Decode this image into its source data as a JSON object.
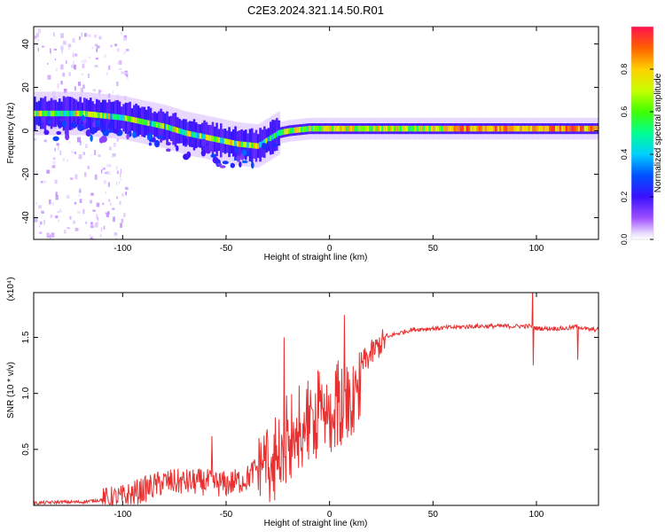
{
  "title": "C2E3.2024.321.14.50.R01",
  "chart_data": [
    {
      "type": "heatmap",
      "xlabel": "Height of straight line (km)",
      "ylabel": "Frequency (Hz)",
      "xlim": [
        -143,
        130
      ],
      "ylim": [
        -50,
        48
      ],
      "xticks": [
        -100,
        -50,
        0,
        50,
        100
      ],
      "yticks": [
        -40,
        -20,
        0,
        20,
        40
      ],
      "ridge": {
        "x": [
          -140,
          -130,
          -120,
          -110,
          -100,
          -90,
          -80,
          -70,
          -60,
          -50,
          -45,
          -40,
          -35,
          -30,
          -25,
          -20,
          -10,
          0,
          10,
          20,
          40,
          60,
          80,
          100,
          120,
          130
        ],
        "freq": [
          8,
          8,
          8,
          7,
          6,
          4,
          2,
          -1,
          -3,
          -5,
          -6,
          -6.5,
          -7,
          -4,
          -1,
          0,
          1,
          1,
          1,
          1,
          1,
          1,
          1,
          1,
          1,
          1
        ]
      },
      "colorbar": {
        "label": "Normalized spectral amplitude",
        "ticks": [
          "0.0",
          "0.2",
          "0.4",
          "0.6",
          "0.8"
        ],
        "range": [
          0,
          1
        ]
      }
    },
    {
      "type": "line",
      "xlabel": "Height of straight line (km)",
      "ylabel": "SNR (10 * v/v)",
      "yunit": "(x10⁴)",
      "xlim": [
        -143,
        130
      ],
      "ylim": [
        0,
        1.9
      ],
      "xticks": [
        -100,
        -50,
        0,
        50,
        100
      ],
      "yticks": [
        "0.5",
        "1.0",
        "1.5"
      ],
      "color": "#e83030",
      "series": [
        {
          "x": [
            -143,
            -130,
            -120,
            -110,
            -100,
            -90,
            -80,
            -70,
            -60,
            -50,
            -40,
            -35,
            -30,
            -25,
            -20,
            -15,
            -10,
            -5,
            0,
            5,
            10,
            15,
            20,
            25,
            30,
            40,
            50,
            60,
            70,
            80,
            90,
            95,
            98,
            100,
            105,
            110,
            115,
            120,
            125,
            130
          ],
          "values": [
            0.02,
            0.03,
            0.03,
            0.05,
            0.08,
            0.15,
            0.22,
            0.22,
            0.22,
            0.2,
            0.25,
            0.35,
            0.5,
            0.62,
            0.75,
            0.82,
            0.88,
            0.95,
            1.0,
            1.05,
            1.15,
            1.25,
            1.35,
            1.45,
            1.52,
            1.57,
            1.58,
            1.59,
            1.6,
            1.6,
            1.6,
            1.6,
            1.6,
            1.58,
            1.58,
            1.58,
            1.58,
            1.6,
            1.57,
            1.57
          ]
        }
      ],
      "spikes": [
        {
          "x": -57,
          "y": 0.62
        },
        {
          "x": -22,
          "y": 1.5
        },
        {
          "x": 7,
          "y": 1.7
        },
        {
          "x": 98,
          "y": 1.95
        },
        {
          "x": 98.5,
          "y": 1.25
        },
        {
          "x": 120,
          "y": 1.3
        }
      ]
    }
  ]
}
